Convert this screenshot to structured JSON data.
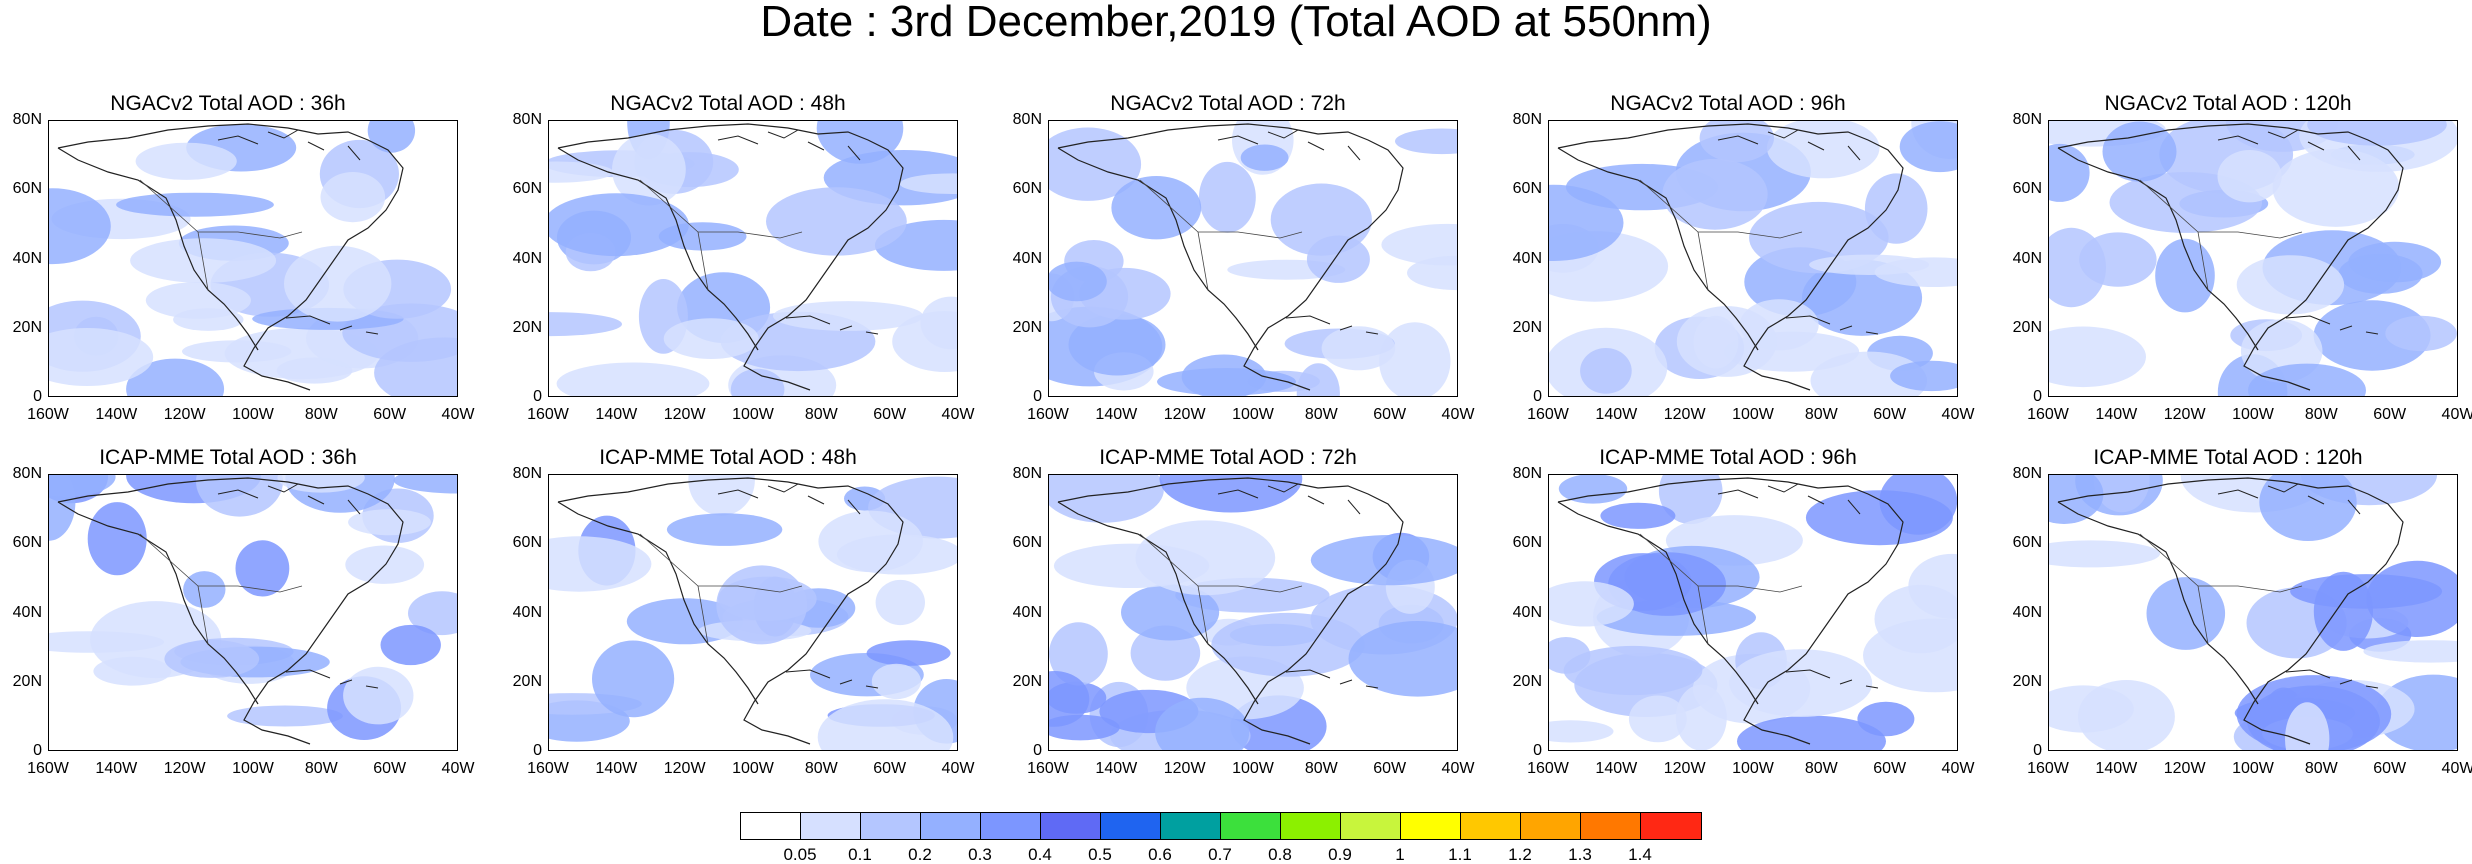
{
  "title": "Date : 3rd December,2019 (Total AOD at 550nm)",
  "panels": [
    {
      "title": "NGACv2 Total AOD : 36h"
    },
    {
      "title": "NGACv2 Total AOD : 48h"
    },
    {
      "title": "NGACv2 Total AOD : 72h"
    },
    {
      "title": "NGACv2 Total AOD : 96h"
    },
    {
      "title": "NGACv2 Total AOD : 120h"
    },
    {
      "title": "ICAP-MME Total AOD : 36h"
    },
    {
      "title": "ICAP-MME Total AOD : 48h"
    },
    {
      "title": "ICAP-MME Total AOD : 72h"
    },
    {
      "title": "ICAP-MME Total AOD : 96h"
    },
    {
      "title": "ICAP-MME Total AOD : 120h"
    }
  ],
  "lat_labels": [
    "80N",
    "60N",
    "40N",
    "20N",
    "0"
  ],
  "lon_labels": [
    "160W",
    "140W",
    "120W",
    "100W",
    "80W",
    "60W",
    "40W"
  ],
  "colorbar": {
    "colors": [
      "#ffffff",
      "#d6e0ff",
      "#b4c6ff",
      "#94b0ff",
      "#7c96ff",
      "#5f6af5",
      "#1f64f0",
      "#00a0a0",
      "#3ce03c",
      "#8cf000",
      "#c8f53c",
      "#ffff00",
      "#ffc800",
      "#ffa500",
      "#ff7800",
      "#ff2814"
    ],
    "labels": [
      "0.05",
      "0.1",
      "0.2",
      "0.3",
      "0.4",
      "0.5",
      "0.6",
      "0.7",
      "0.8",
      "0.9",
      "1",
      "1.1",
      "1.2",
      "1.3",
      "1.4"
    ]
  }
}
